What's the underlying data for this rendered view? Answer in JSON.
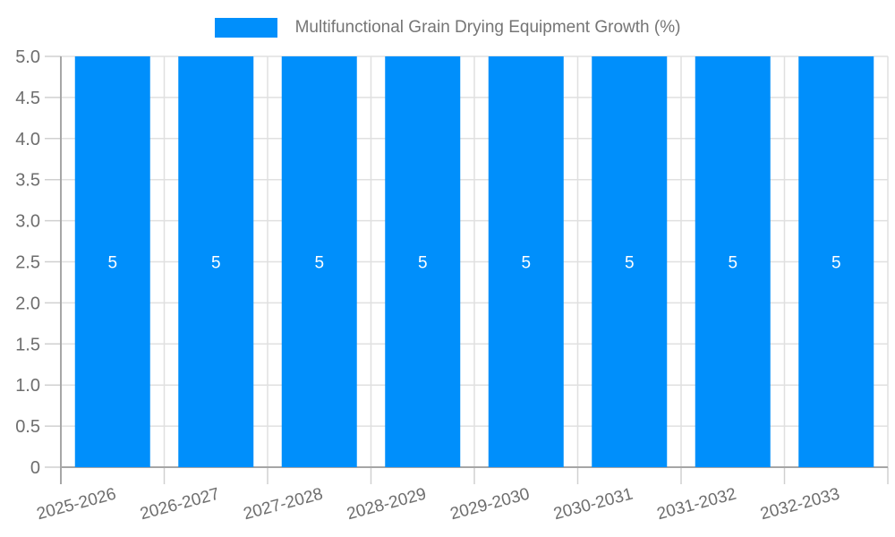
{
  "legend": {
    "swatch_icon": "series-color-swatch"
  },
  "chart_data": {
    "type": "bar",
    "title": "Multifunctional Grain Drying Equipment Growth (%)",
    "categories": [
      "2025-2026",
      "2026-2027",
      "2027-2028",
      "2028-2029",
      "2029-2030",
      "2030-2031",
      "2031-2032",
      "2032-2033"
    ],
    "series": [
      {
        "name": "Multifunctional Grain Drying Equipment Growth (%)",
        "values": [
          5,
          5,
          5,
          5,
          5,
          5,
          5,
          5
        ]
      }
    ],
    "data_labels": [
      "5",
      "5",
      "5",
      "5",
      "5",
      "5",
      "5",
      "5"
    ],
    "xlabel": "",
    "ylabel": "",
    "ylim": [
      0,
      5
    ],
    "ytick_step": 0.5,
    "ytick_labels": [
      "0",
      "0.5",
      "1.0",
      "1.5",
      "2.0",
      "2.5",
      "3.0",
      "3.5",
      "4.0",
      "4.5",
      "5.0"
    ],
    "grid": true,
    "legend_position": "top",
    "colors": {
      "bar": "#008FFB",
      "data_label": "#ffffff",
      "axis_label": "#6e6e6e",
      "legend_label": "#757575",
      "gridline": "#e0e0e0",
      "axis_line": "#a6a6a6",
      "tick": "#d0d0d0",
      "background": "#ffffff"
    }
  }
}
